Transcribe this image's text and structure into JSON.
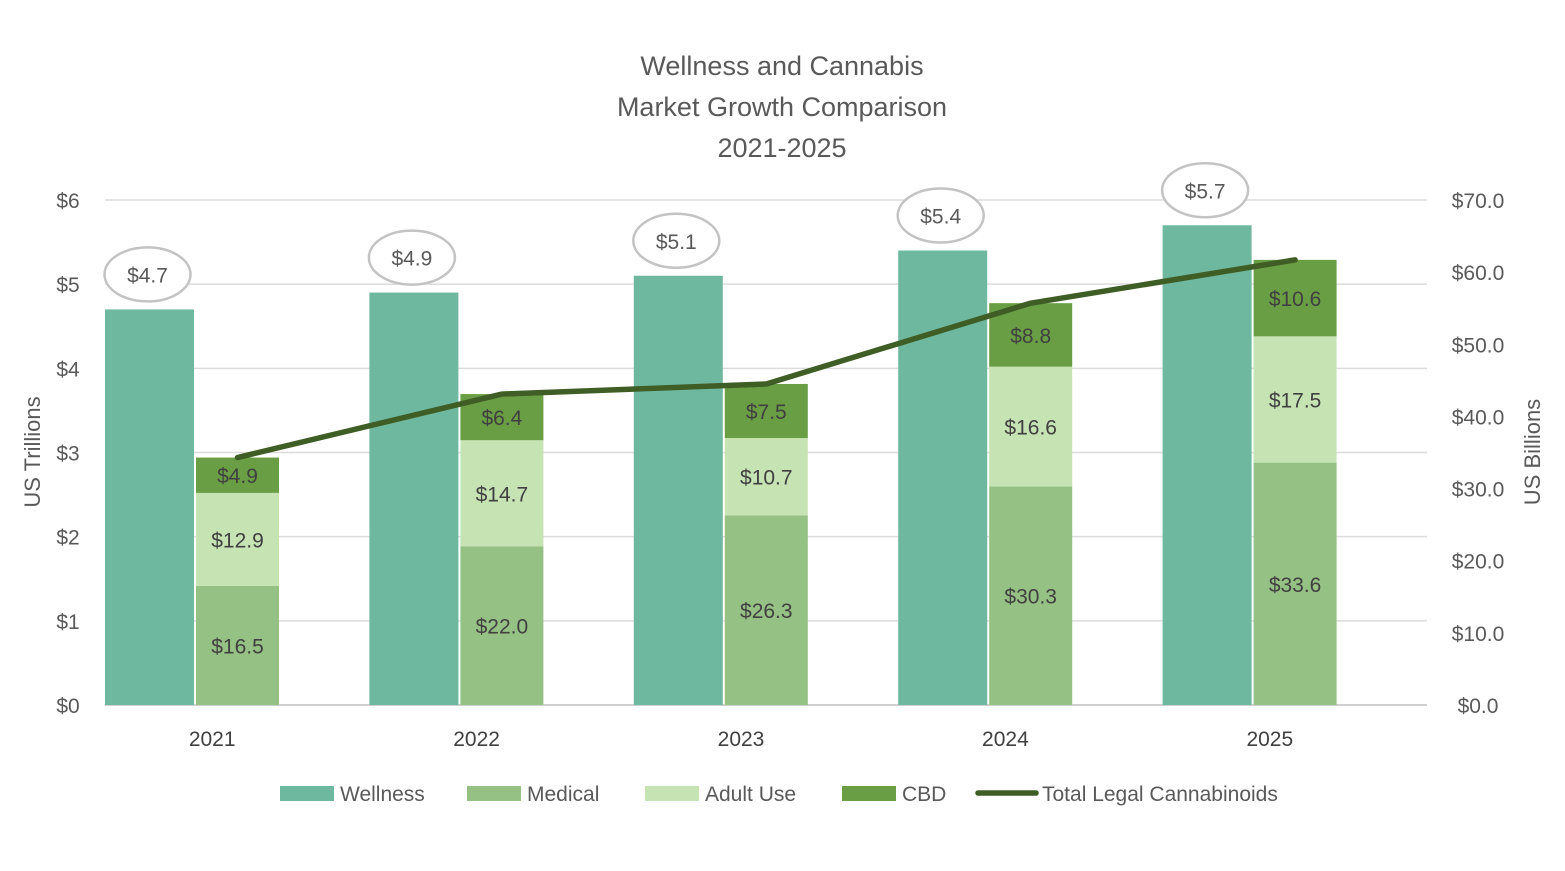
{
  "chart_data": {
    "type": "bar",
    "title": [
      "Wellness and Cannabis",
      "Market Growth Comparison",
      "2021-2025"
    ],
    "categories": [
      "2021",
      "2022",
      "2023",
      "2024",
      "2025"
    ],
    "y_left": {
      "label": "US Trillions",
      "range": [
        0,
        6
      ],
      "ticks": [
        "$0",
        "$1",
        "$2",
        "$3",
        "$4",
        "$5",
        "$6"
      ]
    },
    "y_right": {
      "label": "US Billions",
      "range": [
        0,
        70
      ],
      "ticks": [
        "$0.0",
        "$10.0",
        "$20.0",
        "$30.0",
        "$40.0",
        "$50.0",
        "$60.0",
        "$70.0"
      ]
    },
    "series": [
      {
        "name": "Wellness",
        "axis": "left",
        "kind": "bar",
        "color": "#6fb8a0",
        "values": [
          4.7,
          4.9,
          5.1,
          5.4,
          5.7
        ],
        "labels": [
          "$4.7",
          "$4.9",
          "$5.1",
          "$5.4",
          "$5.7"
        ]
      },
      {
        "name": "Medical",
        "axis": "right",
        "kind": "stacked-bar",
        "color": "#96c184",
        "values": [
          16.5,
          22.0,
          26.3,
          30.3,
          33.6
        ],
        "labels": [
          "$16.5",
          "$22.0",
          "$26.3",
          "$30.3",
          "$33.6"
        ]
      },
      {
        "name": "Adult Use",
        "axis": "right",
        "kind": "stacked-bar",
        "color": "#c6e3b4",
        "values": [
          12.9,
          14.7,
          10.7,
          16.6,
          17.5
        ],
        "labels": [
          "$12.9",
          "$14.7",
          "$10.7",
          "$16.6",
          "$17.5"
        ]
      },
      {
        "name": "CBD",
        "axis": "right",
        "kind": "stacked-bar",
        "color": "#6a9e45",
        "values": [
          4.9,
          6.4,
          7.5,
          8.8,
          10.6
        ],
        "labels": [
          "$4.9",
          "$6.4",
          "$7.5",
          "$8.8",
          "$10.6"
        ]
      },
      {
        "name": "Total Legal Cannabinoids",
        "axis": "right",
        "kind": "line",
        "color": "#3f5e26",
        "values": [
          34.3,
          43.1,
          44.5,
          55.7,
          61.7
        ]
      }
    ],
    "legend": {
      "position": "bottom"
    },
    "grid": true
  }
}
